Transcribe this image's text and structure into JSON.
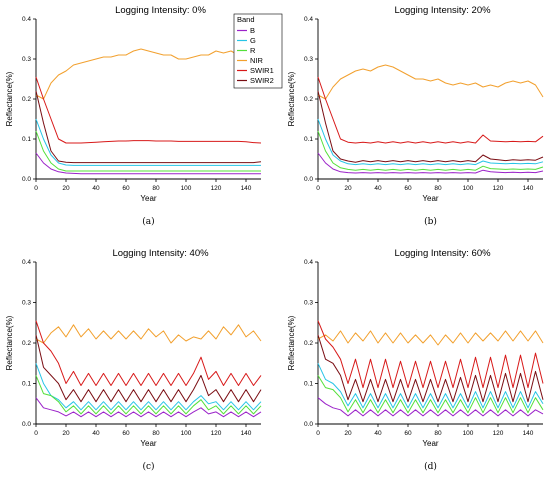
{
  "colors": {
    "B": "#9b22c9",
    "G": "#27c4e6",
    "R": "#54e03a",
    "NIR": "#f2a02e",
    "SWIR1": "#d81a1a",
    "SWIR2": "#7a0d13"
  },
  "legend": {
    "title": "Band",
    "entries": [
      "B",
      "G",
      "R",
      "NIR",
      "SWIR1",
      "SWIR2"
    ]
  },
  "chart_data": [
    {
      "type": "line",
      "title": "Logging Intensity: 0%",
      "caption": "(a)",
      "xlabel": "Year",
      "ylabel": "Reflectance(%)",
      "xlim": [
        0,
        150
      ],
      "ylim": [
        0,
        0.4
      ],
      "xticks": [
        "0",
        "20",
        "40",
        "60",
        "80",
        "100",
        "120",
        "140"
      ],
      "yticks": [
        "0.0",
        "0.1",
        "0.2",
        "0.3",
        "0.4"
      ],
      "x": [
        0,
        5,
        10,
        15,
        20,
        25,
        30,
        35,
        40,
        45,
        50,
        55,
        60,
        65,
        70,
        75,
        80,
        85,
        90,
        95,
        100,
        105,
        110,
        115,
        120,
        125,
        130,
        135,
        140,
        145,
        150
      ],
      "series": [
        {
          "name": "B",
          "values": [
            0.065,
            0.04,
            0.025,
            0.018,
            0.015,
            0.014,
            0.013,
            0.013,
            0.013,
            0.013,
            0.013,
            0.013,
            0.013,
            0.013,
            0.013,
            0.013,
            0.013,
            0.013,
            0.013,
            0.013,
            0.013,
            0.013,
            0.013,
            0.013,
            0.013,
            0.013,
            0.013,
            0.013,
            0.013,
            0.013,
            0.013
          ]
        },
        {
          "name": "G",
          "values": [
            0.15,
            0.1,
            0.06,
            0.04,
            0.035,
            0.034,
            0.034,
            0.034,
            0.034,
            0.034,
            0.034,
            0.034,
            0.034,
            0.034,
            0.034,
            0.034,
            0.034,
            0.034,
            0.034,
            0.034,
            0.034,
            0.034,
            0.034,
            0.034,
            0.034,
            0.034,
            0.034,
            0.034,
            0.034,
            0.034,
            0.034
          ]
        },
        {
          "name": "R",
          "values": [
            0.12,
            0.07,
            0.04,
            0.025,
            0.02,
            0.02,
            0.02,
            0.02,
            0.02,
            0.02,
            0.02,
            0.02,
            0.02,
            0.02,
            0.02,
            0.02,
            0.02,
            0.02,
            0.02,
            0.02,
            0.02,
            0.02,
            0.02,
            0.02,
            0.02,
            0.02,
            0.02,
            0.02,
            0.02,
            0.02,
            0.02
          ]
        },
        {
          "name": "NIR",
          "values": [
            0.21,
            0.2,
            0.24,
            0.26,
            0.27,
            0.285,
            0.29,
            0.295,
            0.3,
            0.305,
            0.305,
            0.31,
            0.31,
            0.32,
            0.325,
            0.32,
            0.315,
            0.31,
            0.31,
            0.3,
            0.3,
            0.305,
            0.31,
            0.31,
            0.32,
            0.315,
            0.32,
            0.31,
            0.3,
            0.29,
            0.265
          ]
        },
        {
          "name": "SWIR1",
          "values": [
            0.255,
            0.2,
            0.15,
            0.1,
            0.09,
            0.09,
            0.09,
            0.091,
            0.092,
            0.093,
            0.094,
            0.095,
            0.095,
            0.096,
            0.096,
            0.096,
            0.095,
            0.095,
            0.095,
            0.094,
            0.094,
            0.094,
            0.094,
            0.094,
            0.094,
            0.094,
            0.094,
            0.094,
            0.093,
            0.091,
            0.09
          ]
        },
        {
          "name": "SWIR2",
          "values": [
            0.22,
            0.14,
            0.07,
            0.045,
            0.042,
            0.041,
            0.041,
            0.041,
            0.041,
            0.041,
            0.041,
            0.041,
            0.041,
            0.041,
            0.041,
            0.041,
            0.041,
            0.041,
            0.041,
            0.041,
            0.041,
            0.041,
            0.041,
            0.041,
            0.041,
            0.041,
            0.041,
            0.041,
            0.041,
            0.041,
            0.043
          ]
        }
      ]
    },
    {
      "type": "line",
      "title": "Logging Intensity: 20%",
      "caption": "(b)",
      "xlabel": "Year",
      "ylabel": "Reflectance(%)",
      "xlim": [
        0,
        150
      ],
      "ylim": [
        0,
        0.4
      ],
      "xticks": [
        "0",
        "20",
        "40",
        "60",
        "80",
        "100",
        "120",
        "140"
      ],
      "yticks": [
        "0.0",
        "0.1",
        "0.2",
        "0.3",
        "0.4"
      ],
      "x": [
        0,
        5,
        10,
        15,
        20,
        25,
        30,
        35,
        40,
        45,
        50,
        55,
        60,
        65,
        70,
        75,
        80,
        85,
        90,
        95,
        100,
        105,
        110,
        115,
        120,
        125,
        130,
        135,
        140,
        145,
        150
      ],
      "series": [
        {
          "name": "B",
          "values": [
            0.065,
            0.04,
            0.025,
            0.018,
            0.016,
            0.015,
            0.016,
            0.015,
            0.016,
            0.015,
            0.016,
            0.015,
            0.016,
            0.015,
            0.016,
            0.015,
            0.016,
            0.015,
            0.016,
            0.015,
            0.016,
            0.015,
            0.022,
            0.018,
            0.017,
            0.016,
            0.017,
            0.016,
            0.017,
            0.016,
            0.02
          ]
        },
        {
          "name": "G",
          "values": [
            0.15,
            0.1,
            0.06,
            0.045,
            0.038,
            0.036,
            0.038,
            0.036,
            0.038,
            0.036,
            0.038,
            0.036,
            0.038,
            0.036,
            0.038,
            0.036,
            0.038,
            0.036,
            0.038,
            0.036,
            0.038,
            0.036,
            0.045,
            0.04,
            0.039,
            0.038,
            0.039,
            0.038,
            0.039,
            0.038,
            0.043
          ]
        },
        {
          "name": "R",
          "values": [
            0.12,
            0.07,
            0.04,
            0.028,
            0.024,
            0.022,
            0.024,
            0.022,
            0.024,
            0.022,
            0.024,
            0.022,
            0.024,
            0.022,
            0.024,
            0.022,
            0.024,
            0.022,
            0.024,
            0.022,
            0.024,
            0.022,
            0.032,
            0.026,
            0.025,
            0.024,
            0.025,
            0.024,
            0.025,
            0.024,
            0.03
          ]
        },
        {
          "name": "NIR",
          "values": [
            0.21,
            0.2,
            0.23,
            0.25,
            0.26,
            0.27,
            0.275,
            0.27,
            0.28,
            0.285,
            0.28,
            0.27,
            0.26,
            0.25,
            0.25,
            0.245,
            0.25,
            0.24,
            0.235,
            0.24,
            0.235,
            0.24,
            0.23,
            0.235,
            0.23,
            0.24,
            0.245,
            0.24,
            0.245,
            0.235,
            0.205
          ]
        },
        {
          "name": "SWIR1",
          "values": [
            0.255,
            0.2,
            0.15,
            0.1,
            0.092,
            0.09,
            0.092,
            0.09,
            0.093,
            0.09,
            0.093,
            0.09,
            0.093,
            0.09,
            0.093,
            0.09,
            0.093,
            0.09,
            0.093,
            0.09,
            0.093,
            0.09,
            0.11,
            0.095,
            0.094,
            0.093,
            0.094,
            0.093,
            0.094,
            0.093,
            0.107
          ]
        },
        {
          "name": "SWIR2",
          "values": [
            0.22,
            0.14,
            0.07,
            0.05,
            0.045,
            0.042,
            0.046,
            0.043,
            0.046,
            0.043,
            0.046,
            0.043,
            0.046,
            0.043,
            0.046,
            0.043,
            0.046,
            0.043,
            0.046,
            0.043,
            0.046,
            0.043,
            0.06,
            0.05,
            0.048,
            0.046,
            0.048,
            0.047,
            0.048,
            0.047,
            0.055
          ]
        }
      ]
    },
    {
      "type": "line",
      "title": "Logging Intensity: 40%",
      "caption": "(c)",
      "xlabel": "Year",
      "ylabel": "Reflectance(%)",
      "xlim": [
        0,
        150
      ],
      "ylim": [
        0,
        0.4
      ],
      "xticks": [
        "0",
        "20",
        "40",
        "60",
        "80",
        "100",
        "120",
        "140"
      ],
      "yticks": [
        "0.0",
        "0.1",
        "0.2",
        "0.3",
        "0.4"
      ],
      "x": [
        0,
        5,
        10,
        15,
        20,
        25,
        30,
        35,
        40,
        45,
        50,
        55,
        60,
        65,
        70,
        75,
        80,
        85,
        90,
        95,
        100,
        105,
        110,
        115,
        120,
        125,
        130,
        135,
        140,
        145,
        150
      ],
      "series": [
        {
          "name": "B",
          "values": [
            0.065,
            0.04,
            0.035,
            0.03,
            0.02,
            0.03,
            0.018,
            0.03,
            0.018,
            0.03,
            0.018,
            0.03,
            0.018,
            0.03,
            0.018,
            0.03,
            0.018,
            0.03,
            0.018,
            0.03,
            0.018,
            0.03,
            0.04,
            0.025,
            0.03,
            0.018,
            0.03,
            0.018,
            0.03,
            0.018,
            0.03
          ]
        },
        {
          "name": "G",
          "values": [
            0.15,
            0.1,
            0.07,
            0.06,
            0.04,
            0.055,
            0.035,
            0.055,
            0.035,
            0.055,
            0.035,
            0.055,
            0.035,
            0.055,
            0.035,
            0.055,
            0.035,
            0.055,
            0.035,
            0.055,
            0.035,
            0.055,
            0.07,
            0.05,
            0.055,
            0.035,
            0.055,
            0.035,
            0.055,
            0.035,
            0.055
          ]
        },
        {
          "name": "R",
          "values": [
            0.12,
            0.075,
            0.07,
            0.055,
            0.03,
            0.045,
            0.025,
            0.045,
            0.025,
            0.045,
            0.025,
            0.045,
            0.025,
            0.045,
            0.025,
            0.045,
            0.025,
            0.045,
            0.025,
            0.045,
            0.025,
            0.045,
            0.06,
            0.035,
            0.045,
            0.025,
            0.045,
            0.025,
            0.045,
            0.025,
            0.045
          ]
        },
        {
          "name": "NIR",
          "values": [
            0.21,
            0.2,
            0.225,
            0.24,
            0.215,
            0.245,
            0.215,
            0.235,
            0.21,
            0.23,
            0.21,
            0.23,
            0.21,
            0.23,
            0.21,
            0.235,
            0.215,
            0.23,
            0.2,
            0.22,
            0.205,
            0.215,
            0.21,
            0.23,
            0.21,
            0.24,
            0.22,
            0.245,
            0.215,
            0.23,
            0.205
          ]
        },
        {
          "name": "SWIR1",
          "values": [
            0.255,
            0.2,
            0.18,
            0.15,
            0.1,
            0.13,
            0.095,
            0.125,
            0.095,
            0.125,
            0.095,
            0.125,
            0.095,
            0.125,
            0.095,
            0.125,
            0.095,
            0.125,
            0.095,
            0.125,
            0.095,
            0.125,
            0.165,
            0.11,
            0.13,
            0.095,
            0.125,
            0.095,
            0.125,
            0.095,
            0.12
          ]
        },
        {
          "name": "SWIR2",
          "values": [
            0.22,
            0.14,
            0.12,
            0.1,
            0.06,
            0.085,
            0.055,
            0.085,
            0.055,
            0.085,
            0.055,
            0.085,
            0.055,
            0.085,
            0.055,
            0.085,
            0.055,
            0.085,
            0.055,
            0.085,
            0.055,
            0.085,
            0.12,
            0.07,
            0.085,
            0.055,
            0.085,
            0.055,
            0.085,
            0.055,
            0.085
          ]
        }
      ]
    },
    {
      "type": "line",
      "title": "Logging Intensity: 60%",
      "caption": "(d)",
      "xlabel": "Year",
      "ylabel": "Reflectance(%)",
      "xlim": [
        0,
        150
      ],
      "ylim": [
        0,
        0.4
      ],
      "xticks": [
        "0",
        "20",
        "40",
        "60",
        "80",
        "100",
        "120",
        "140"
      ],
      "yticks": [
        "0.0",
        "0.1",
        "0.2",
        "0.3",
        "0.4"
      ],
      "x": [
        0,
        5,
        10,
        15,
        20,
        25,
        30,
        35,
        40,
        45,
        50,
        55,
        60,
        65,
        70,
        75,
        80,
        85,
        90,
        95,
        100,
        105,
        110,
        115,
        120,
        125,
        130,
        135,
        140,
        145,
        150
      ],
      "series": [
        {
          "name": "B",
          "values": [
            0.065,
            0.05,
            0.04,
            0.035,
            0.02,
            0.035,
            0.02,
            0.035,
            0.02,
            0.035,
            0.02,
            0.035,
            0.02,
            0.035,
            0.02,
            0.035,
            0.02,
            0.035,
            0.02,
            0.035,
            0.02,
            0.035,
            0.02,
            0.035,
            0.02,
            0.035,
            0.02,
            0.035,
            0.02,
            0.035,
            0.025
          ]
        },
        {
          "name": "G",
          "values": [
            0.15,
            0.11,
            0.1,
            0.08,
            0.045,
            0.075,
            0.04,
            0.075,
            0.04,
            0.075,
            0.04,
            0.075,
            0.04,
            0.075,
            0.04,
            0.075,
            0.04,
            0.075,
            0.04,
            0.075,
            0.04,
            0.08,
            0.04,
            0.08,
            0.04,
            0.08,
            0.04,
            0.08,
            0.04,
            0.08,
            0.05
          ]
        },
        {
          "name": "R",
          "values": [
            0.12,
            0.09,
            0.085,
            0.065,
            0.03,
            0.06,
            0.028,
            0.06,
            0.028,
            0.06,
            0.028,
            0.06,
            0.028,
            0.06,
            0.028,
            0.06,
            0.028,
            0.06,
            0.028,
            0.06,
            0.028,
            0.065,
            0.028,
            0.065,
            0.028,
            0.065,
            0.028,
            0.065,
            0.028,
            0.065,
            0.035
          ]
        },
        {
          "name": "NIR",
          "values": [
            0.21,
            0.22,
            0.205,
            0.23,
            0.2,
            0.225,
            0.205,
            0.23,
            0.2,
            0.225,
            0.2,
            0.225,
            0.2,
            0.22,
            0.2,
            0.22,
            0.195,
            0.22,
            0.2,
            0.225,
            0.2,
            0.225,
            0.205,
            0.225,
            0.205,
            0.23,
            0.205,
            0.23,
            0.205,
            0.23,
            0.2
          ]
        },
        {
          "name": "SWIR1",
          "values": [
            0.255,
            0.21,
            0.19,
            0.16,
            0.1,
            0.16,
            0.09,
            0.16,
            0.09,
            0.16,
            0.09,
            0.155,
            0.09,
            0.155,
            0.09,
            0.155,
            0.09,
            0.155,
            0.09,
            0.16,
            0.09,
            0.165,
            0.09,
            0.165,
            0.09,
            0.17,
            0.09,
            0.17,
            0.09,
            0.175,
            0.1
          ]
        },
        {
          "name": "SWIR2",
          "values": [
            0.22,
            0.16,
            0.15,
            0.12,
            0.06,
            0.11,
            0.055,
            0.11,
            0.055,
            0.11,
            0.055,
            0.11,
            0.055,
            0.11,
            0.055,
            0.11,
            0.055,
            0.11,
            0.055,
            0.115,
            0.055,
            0.12,
            0.055,
            0.12,
            0.055,
            0.125,
            0.055,
            0.125,
            0.055,
            0.13,
            0.06
          ]
        }
      ]
    }
  ]
}
